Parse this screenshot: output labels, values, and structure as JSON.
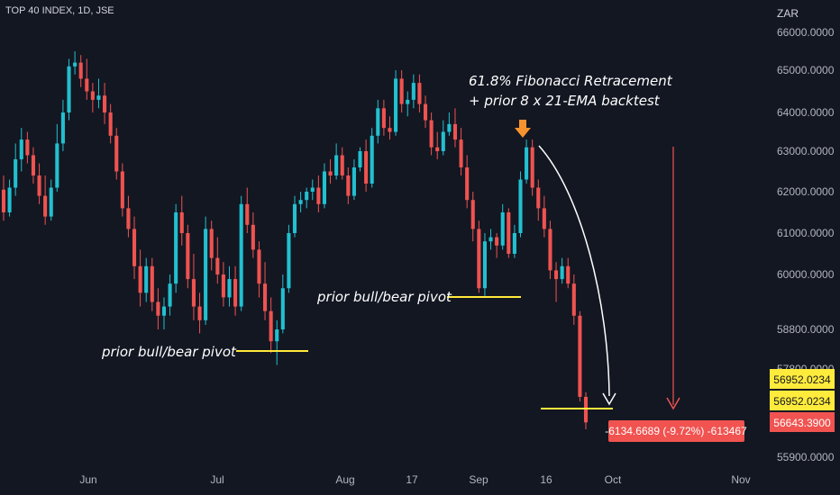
{
  "header": {
    "symbol_title": "TOP 40 INDEX, 1D, JSE",
    "currency": "ZAR"
  },
  "colors": {
    "background": "#131722",
    "up": "#26a69a",
    "up_bright": "#22c0d0",
    "down": "#ef5350",
    "support_line": "#ffeb3b",
    "arrow_orange": "#f7932f",
    "measure_red": "#f05350",
    "tag_yellow": "#ffeb3b",
    "tag_red": "#f05350"
  },
  "chart_data": {
    "type": "candlestick",
    "title": "TOP 40 INDEX, 1D, JSE",
    "currency": "ZAR",
    "y_axis": {
      "position": "right",
      "scale": "log",
      "ticks": [
        "66000.0000",
        "65000.0000",
        "64000.0000",
        "63000.0000",
        "62000.0000",
        "61000.0000",
        "60000.0000",
        "58800.0000",
        "57800.0000",
        "55900.0000"
      ],
      "tick_values": [
        66000,
        65000,
        64000,
        63000,
        62000,
        61000,
        60000,
        58800,
        57800,
        55900
      ],
      "range": [
        55500,
        66500
      ]
    },
    "x_axis": {
      "ticks": [
        "Jun",
        "Jul",
        "Aug",
        "17",
        "Sep",
        "16",
        "Oct",
        "Nov"
      ]
    },
    "price_tags": [
      {
        "value": "56952.0234",
        "style": "yellow"
      },
      {
        "value": "56952.0234",
        "style": "yellow"
      },
      {
        "value": "56643.3900",
        "style": "red"
      }
    ],
    "measure_label": "-6134.6689 (-9.72%) -613467",
    "annotations": [
      {
        "text": "61.8% Fibonacci Retracement"
      },
      {
        "text": "+ prior 8 x 21-EMA backtest"
      },
      {
        "text": "prior bull/bear pivot"
      },
      {
        "text": "prior bull/bear pivot"
      }
    ],
    "support_levels": [
      58480,
      59620,
      57020
    ],
    "candles": [
      {
        "o": 62050,
        "h": 62400,
        "l": 61300,
        "c": 61500
      },
      {
        "o": 61500,
        "h": 62300,
        "l": 61400,
        "c": 62100
      },
      {
        "o": 62100,
        "h": 63200,
        "l": 61900,
        "c": 62800
      },
      {
        "o": 62800,
        "h": 63600,
        "l": 62500,
        "c": 63300
      },
      {
        "o": 63300,
        "h": 63500,
        "l": 62700,
        "c": 62900
      },
      {
        "o": 62900,
        "h": 63100,
        "l": 62200,
        "c": 62400
      },
      {
        "o": 62400,
        "h": 62700,
        "l": 61700,
        "c": 61900
      },
      {
        "o": 61900,
        "h": 62400,
        "l": 61200,
        "c": 61400
      },
      {
        "o": 61400,
        "h": 62300,
        "l": 61300,
        "c": 62100
      },
      {
        "o": 62100,
        "h": 63700,
        "l": 62000,
        "c": 63200
      },
      {
        "o": 63200,
        "h": 64300,
        "l": 63000,
        "c": 64000
      },
      {
        "o": 64000,
        "h": 65300,
        "l": 63800,
        "c": 65100
      },
      {
        "o": 65100,
        "h": 65500,
        "l": 64900,
        "c": 65200
      },
      {
        "o": 65200,
        "h": 65400,
        "l": 64600,
        "c": 64800
      },
      {
        "o": 64800,
        "h": 65300,
        "l": 64300,
        "c": 64500
      },
      {
        "o": 64500,
        "h": 64700,
        "l": 64000,
        "c": 64300
      },
      {
        "o": 64300,
        "h": 64800,
        "l": 64100,
        "c": 64400
      },
      {
        "o": 64400,
        "h": 64700,
        "l": 63700,
        "c": 64000
      },
      {
        "o": 64000,
        "h": 64200,
        "l": 63200,
        "c": 63400
      },
      {
        "o": 63400,
        "h": 63600,
        "l": 62300,
        "c": 62500
      },
      {
        "o": 62500,
        "h": 62700,
        "l": 61400,
        "c": 61600
      },
      {
        "o": 61600,
        "h": 61900,
        "l": 60900,
        "c": 61100
      },
      {
        "o": 61100,
        "h": 61400,
        "l": 59900,
        "c": 60200
      },
      {
        "o": 60200,
        "h": 60600,
        "l": 59300,
        "c": 59600
      },
      {
        "o": 59600,
        "h": 60400,
        "l": 59400,
        "c": 60200
      },
      {
        "o": 60200,
        "h": 60400,
        "l": 59200,
        "c": 59400
      },
      {
        "o": 59400,
        "h": 59700,
        "l": 58800,
        "c": 59100
      },
      {
        "o": 59100,
        "h": 59500,
        "l": 58800,
        "c": 59300
      },
      {
        "o": 59300,
        "h": 60000,
        "l": 59100,
        "c": 59800
      },
      {
        "o": 59800,
        "h": 61700,
        "l": 59600,
        "c": 61500
      },
      {
        "o": 61500,
        "h": 61900,
        "l": 60700,
        "c": 61000
      },
      {
        "o": 61000,
        "h": 61200,
        "l": 59700,
        "c": 59900
      },
      {
        "o": 59900,
        "h": 60500,
        "l": 59000,
        "c": 59300
      },
      {
        "o": 59300,
        "h": 59600,
        "l": 58700,
        "c": 59000
      },
      {
        "o": 59000,
        "h": 61400,
        "l": 58900,
        "c": 61100
      },
      {
        "o": 61100,
        "h": 61300,
        "l": 60100,
        "c": 60400
      },
      {
        "o": 60400,
        "h": 60900,
        "l": 59800,
        "c": 60000
      },
      {
        "o": 60000,
        "h": 60300,
        "l": 59300,
        "c": 59500
      },
      {
        "o": 59500,
        "h": 60200,
        "l": 59300,
        "c": 59900
      },
      {
        "o": 59900,
        "h": 60200,
        "l": 59100,
        "c": 59300
      },
      {
        "o": 59300,
        "h": 61900,
        "l": 59200,
        "c": 61700
      },
      {
        "o": 61700,
        "h": 62100,
        "l": 61000,
        "c": 61200
      },
      {
        "o": 61200,
        "h": 61500,
        "l": 60400,
        "c": 60600
      },
      {
        "o": 60600,
        "h": 60800,
        "l": 59500,
        "c": 59800
      },
      {
        "o": 59800,
        "h": 60300,
        "l": 59000,
        "c": 59200
      },
      {
        "o": 59200,
        "h": 59500,
        "l": 58200,
        "c": 58500
      },
      {
        "o": 58500,
        "h": 59000,
        "l": 57900,
        "c": 58800
      },
      {
        "o": 58800,
        "h": 60000,
        "l": 58700,
        "c": 59700
      },
      {
        "o": 59700,
        "h": 61200,
        "l": 59600,
        "c": 61000
      },
      {
        "o": 61000,
        "h": 61900,
        "l": 60900,
        "c": 61700
      },
      {
        "o": 61700,
        "h": 62000,
        "l": 61500,
        "c": 61800
      },
      {
        "o": 61800,
        "h": 62100,
        "l": 61600,
        "c": 62000
      },
      {
        "o": 62000,
        "h": 62300,
        "l": 61800,
        "c": 62100
      },
      {
        "o": 62100,
        "h": 62400,
        "l": 61500,
        "c": 61700
      },
      {
        "o": 61700,
        "h": 62700,
        "l": 61600,
        "c": 62500
      },
      {
        "o": 62500,
        "h": 62800,
        "l": 62200,
        "c": 62400
      },
      {
        "o": 62400,
        "h": 63200,
        "l": 62300,
        "c": 62900
      },
      {
        "o": 62900,
        "h": 63100,
        "l": 62300,
        "c": 62400
      },
      {
        "o": 62400,
        "h": 62600,
        "l": 61700,
        "c": 61900
      },
      {
        "o": 61900,
        "h": 62800,
        "l": 61800,
        "c": 62600
      },
      {
        "o": 62600,
        "h": 63100,
        "l": 62500,
        "c": 63000
      },
      {
        "o": 63000,
        "h": 63300,
        "l": 62000,
        "c": 62200
      },
      {
        "o": 62200,
        "h": 63600,
        "l": 62100,
        "c": 63400
      },
      {
        "o": 63400,
        "h": 64300,
        "l": 63200,
        "c": 64100
      },
      {
        "o": 64100,
        "h": 64300,
        "l": 63400,
        "c": 63600
      },
      {
        "o": 63600,
        "h": 63900,
        "l": 63300,
        "c": 63500
      },
      {
        "o": 63500,
        "h": 65000,
        "l": 63400,
        "c": 64800
      },
      {
        "o": 64800,
        "h": 65000,
        "l": 64000,
        "c": 64200
      },
      {
        "o": 64200,
        "h": 64500,
        "l": 63900,
        "c": 64300
      },
      {
        "o": 64300,
        "h": 64900,
        "l": 64100,
        "c": 64700
      },
      {
        "o": 64700,
        "h": 64900,
        "l": 64000,
        "c": 64200
      },
      {
        "o": 64200,
        "h": 64400,
        "l": 63600,
        "c": 63800
      },
      {
        "o": 63800,
        "h": 64000,
        "l": 62900,
        "c": 63100
      },
      {
        "o": 63100,
        "h": 63500,
        "l": 62800,
        "c": 63000
      },
      {
        "o": 63000,
        "h": 63800,
        "l": 62900,
        "c": 63500
      },
      {
        "o": 63500,
        "h": 64000,
        "l": 63400,
        "c": 63700
      },
      {
        "o": 63700,
        "h": 64100,
        "l": 63100,
        "c": 63300
      },
      {
        "o": 63300,
        "h": 63600,
        "l": 62400,
        "c": 62600
      },
      {
        "o": 62600,
        "h": 62900,
        "l": 61600,
        "c": 61800
      },
      {
        "o": 61800,
        "h": 62000,
        "l": 60800,
        "c": 61100
      },
      {
        "o": 61100,
        "h": 61300,
        "l": 59600,
        "c": 59700
      },
      {
        "o": 59700,
        "h": 61000,
        "l": 59500,
        "c": 60800
      },
      {
        "o": 60800,
        "h": 61100,
        "l": 60600,
        "c": 60900
      },
      {
        "o": 60900,
        "h": 61000,
        "l": 60400,
        "c": 60700
      },
      {
        "o": 60700,
        "h": 61700,
        "l": 60600,
        "c": 61500
      },
      {
        "o": 61500,
        "h": 61600,
        "l": 60400,
        "c": 60500
      },
      {
        "o": 60500,
        "h": 61200,
        "l": 60400,
        "c": 61000
      },
      {
        "o": 61000,
        "h": 62500,
        "l": 60900,
        "c": 62300
      },
      {
        "o": 62300,
        "h": 63300,
        "l": 62200,
        "c": 63100
      },
      {
        "o": 63100,
        "h": 63300,
        "l": 61900,
        "c": 62100
      },
      {
        "o": 62100,
        "h": 62300,
        "l": 61300,
        "c": 61600
      },
      {
        "o": 61600,
        "h": 61900,
        "l": 60900,
        "c": 61100
      },
      {
        "o": 61100,
        "h": 61300,
        "l": 59900,
        "c": 60100
      },
      {
        "o": 60100,
        "h": 60300,
        "l": 59400,
        "c": 59900
      },
      {
        "o": 59900,
        "h": 60400,
        "l": 59800,
        "c": 60200
      },
      {
        "o": 60200,
        "h": 60400,
        "l": 59700,
        "c": 59800
      },
      {
        "o": 59800,
        "h": 60000,
        "l": 58900,
        "c": 59100
      },
      {
        "o": 59100,
        "h": 59200,
        "l": 57100,
        "c": 57200
      },
      {
        "o": 57200,
        "h": 57300,
        "l": 56500,
        "c": 56650
      }
    ]
  }
}
